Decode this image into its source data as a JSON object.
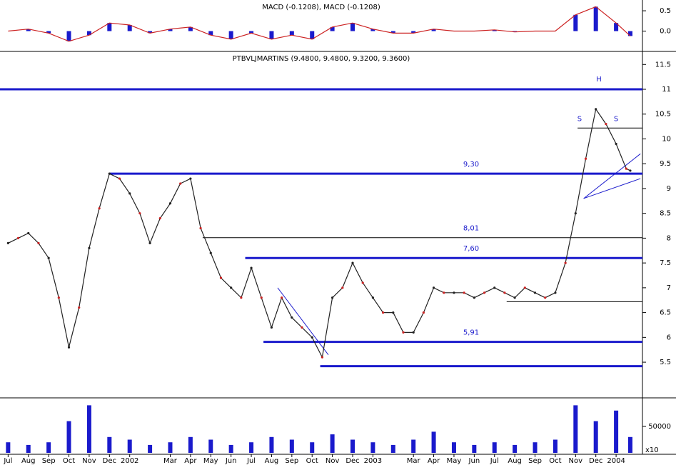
{
  "chart_data": [
    {
      "type": "macd",
      "title": "MACD (-0.1208), MACD (-0.1208)",
      "xlim": [
        -0.4,
        31.3
      ],
      "ylim": [
        -0.43,
        0.73
      ],
      "yticks": [
        {
          "value": 0.5,
          "label": "0.5"
        },
        {
          "value": 0,
          "label": "0.0"
        }
      ],
      "series": [
        {
          "name": "MACD",
          "color": "#1a1acc",
          "x": [
            0,
            1,
            2,
            3,
            4,
            5,
            6,
            7,
            8,
            9,
            10,
            11,
            12,
            13,
            14,
            15,
            16,
            17,
            18,
            19,
            20,
            21,
            22,
            23,
            24,
            25,
            26,
            27,
            28,
            29,
            30,
            30.7
          ],
          "values": [
            0.0,
            0.05,
            -0.05,
            -0.25,
            -0.1,
            0.2,
            0.15,
            -0.05,
            0.05,
            0.1,
            -0.1,
            -0.2,
            -0.05,
            -0.2,
            -0.1,
            -0.2,
            0.1,
            0.2,
            0.05,
            -0.05,
            -0.05,
            0.05,
            0.0,
            0.0,
            0.03,
            -0.02,
            0.0,
            0.0,
            0.4,
            0.6,
            0.2,
            -0.1208
          ]
        }
      ]
    },
    {
      "type": "price",
      "title": "PTBVLJMARTINS (9.4800, 9.4800, 9.3200, 9.3600)",
      "xlim": [
        -0.4,
        31.3
      ],
      "ylim": [
        4.81,
        11.72
      ],
      "yticks": [
        5.5,
        6,
        6.5,
        7,
        7.5,
        8,
        8.5,
        9,
        9.5,
        10,
        10.5,
        11,
        11.5
      ],
      "series": [
        {
          "name": "PTBVLJMARTINS",
          "color": "#222222",
          "x": [
            0,
            0.5,
            1,
            1.5,
            2,
            2.5,
            3,
            3.5,
            4,
            4.5,
            5,
            5.5,
            6,
            6.5,
            7,
            7.5,
            8,
            8.5,
            9,
            9.5,
            10,
            10.5,
            11,
            11.5,
            12,
            12.5,
            13,
            13.5,
            14,
            14.5,
            15,
            15.5,
            16,
            16.5,
            17,
            17.5,
            18,
            18.5,
            19,
            19.5,
            20,
            20.5,
            21,
            21.5,
            22,
            22.5,
            23,
            23.5,
            24,
            24.5,
            25,
            25.5,
            26,
            26.5,
            27,
            27.5,
            28,
            28.5,
            29,
            29.5,
            30,
            30.5,
            30.7
          ],
          "values": [
            7.9,
            8.0,
            8.1,
            7.9,
            7.6,
            6.8,
            5.8,
            6.6,
            7.8,
            8.6,
            9.3,
            9.2,
            8.9,
            8.5,
            7.9,
            8.4,
            8.7,
            9.1,
            9.2,
            8.2,
            7.7,
            7.2,
            7.0,
            6.8,
            7.4,
            6.8,
            6.2,
            6.8,
            6.4,
            6.2,
            6.0,
            5.6,
            6.8,
            7.0,
            7.5,
            7.1,
            6.8,
            6.5,
            6.5,
            6.1,
            6.1,
            6.5,
            7.0,
            6.9,
            6.9,
            6.9,
            6.8,
            6.9,
            7.0,
            6.9,
            6.8,
            7.0,
            6.9,
            6.8,
            6.9,
            7.5,
            8.5,
            9.6,
            10.6,
            10.3,
            9.9,
            9.4,
            9.36
          ]
        }
      ],
      "levels": [
        {
          "value": 11.0,
          "x_start": -0.4,
          "thick": true
        },
        {
          "value": 9.3,
          "label": "9,30",
          "x_start": 5.0,
          "thick": true
        },
        {
          "value": 8.01,
          "label": "8,01",
          "x_start": 9.6,
          "thick": false
        },
        {
          "value": 7.6,
          "label": "7,60",
          "x_start": 11.7,
          "thick": true
        },
        {
          "value": 5.91,
          "label": "5,91",
          "x_start": 12.6,
          "thick": true
        },
        {
          "value": 5.42,
          "x_start": 15.4,
          "thick": true
        },
        {
          "value": 10.22,
          "x_start": 28.1,
          "thick": false
        },
        {
          "value": 6.72,
          "x_start": 24.6,
          "thick": false
        }
      ],
      "trendlines": [
        {
          "x": [
            13.3,
            15.8
          ],
          "y": [
            7.0,
            5.65
          ]
        },
        {
          "x": [
            28.4,
            31.2
          ],
          "y": [
            8.8,
            9.7
          ]
        },
        {
          "x": [
            28.4,
            31.2
          ],
          "y": [
            8.8,
            9.2
          ]
        }
      ],
      "annotations": [
        {
          "text": "H",
          "x": 29.15,
          "y": 11.2
        },
        {
          "text": "S",
          "x": 28.2,
          "y": 10.4
        },
        {
          "text": "S",
          "x": 30.0,
          "y": 10.4
        }
      ]
    },
    {
      "type": "volume",
      "xlim": [
        -0.4,
        31.3
      ],
      "ylim": [
        0,
        100000
      ],
      "yticks": [
        50000
      ],
      "unit_label": "x10",
      "series": [
        {
          "name": "Volume",
          "color": "#1a1acc",
          "x": [
            0,
            1,
            2,
            3,
            4,
            5,
            6,
            7,
            8,
            9,
            10,
            11,
            12,
            13,
            14,
            15,
            16,
            17,
            18,
            19,
            20,
            21,
            22,
            23,
            24,
            25,
            26,
            27,
            28,
            29,
            30,
            30.7
          ],
          "values": [
            20000,
            15000,
            20000,
            60000,
            90000,
            30000,
            25000,
            15000,
            20000,
            30000,
            25000,
            15000,
            20000,
            30000,
            25000,
            20000,
            35000,
            25000,
            20000,
            15000,
            25000,
            40000,
            20000,
            15000,
            20000,
            15000,
            20000,
            25000,
            90000,
            60000,
            80000,
            30000
          ]
        }
      ],
      "xticks": [
        {
          "value": 0,
          "label": "Jul"
        },
        {
          "value": 1,
          "label": "Aug"
        },
        {
          "value": 2,
          "label": "Sep"
        },
        {
          "value": 3,
          "label": "Oct"
        },
        {
          "value": 4,
          "label": "Nov"
        },
        {
          "value": 5,
          "label": "Dec"
        },
        {
          "value": 6,
          "label": "2002"
        },
        {
          "value": 8,
          "label": "Mar"
        },
        {
          "value": 9,
          "label": "Apr"
        },
        {
          "value": 10,
          "label": "May"
        },
        {
          "value": 11,
          "label": "Jun"
        },
        {
          "value": 12,
          "label": "Jul"
        },
        {
          "value": 13,
          "label": "Aug"
        },
        {
          "value": 14,
          "label": "Sep"
        },
        {
          "value": 15,
          "label": "Oct"
        },
        {
          "value": 16,
          "label": "Nov"
        },
        {
          "value": 17,
          "label": "Dec"
        },
        {
          "value": 18,
          "label": "2003"
        },
        {
          "value": 20,
          "label": "Mar"
        },
        {
          "value": 21,
          "label": "Apr"
        },
        {
          "value": 22,
          "label": "May"
        },
        {
          "value": 23,
          "label": "Jun"
        },
        {
          "value": 24,
          "label": "Jul"
        },
        {
          "value": 25,
          "label": "Aug"
        },
        {
          "value": 26,
          "label": "Sep"
        },
        {
          "value": 27,
          "label": "Oct"
        },
        {
          "value": 28,
          "label": "Nov"
        },
        {
          "value": 29,
          "label": "Dec"
        },
        {
          "value": 30,
          "label": "2004"
        }
      ]
    }
  ]
}
